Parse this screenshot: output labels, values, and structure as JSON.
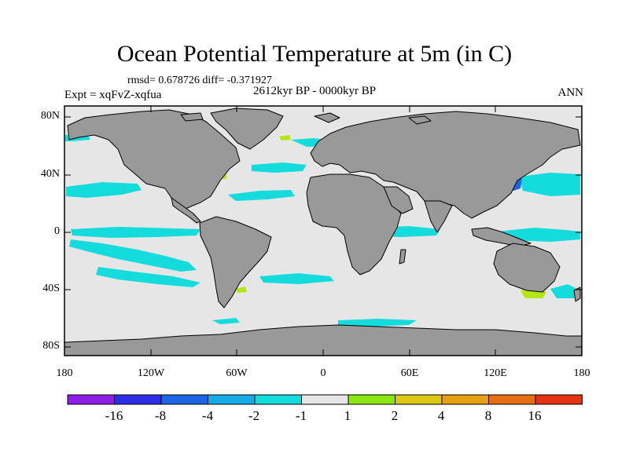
{
  "title": "Ocean Potential Temperature at 5m (in C)",
  "stats": "rmsd= 0.678726  diff= -0.371927",
  "period": "2612kyr BP - 0000kyr BP",
  "experiment": "Expt = xqFvZ-xqfua",
  "season": "ANN",
  "y_axis": [
    "80N",
    "40N",
    "0",
    "40S",
    "80S"
  ],
  "x_axis": [
    "180",
    "120W",
    "60W",
    "0",
    "60E",
    "120E",
    "180"
  ],
  "colorbar": {
    "colors": [
      "#8c1ee6",
      "#2d2de6",
      "#1e64e6",
      "#14aae6",
      "#14dcdc",
      "#e6e6e6",
      "#8ce614",
      "#dcc814",
      "#e6a014",
      "#e66e14",
      "#e63214"
    ],
    "labels": [
      "-16",
      "-8",
      "-4",
      "-2",
      "-1",
      "1",
      "2",
      "4",
      "8",
      "16"
    ]
  },
  "colors": {
    "land": "#999999",
    "ocean_background": "#e6e6e6",
    "cool_anomaly": "#14dcdc",
    "warm_anomaly": "#b4e614"
  }
}
